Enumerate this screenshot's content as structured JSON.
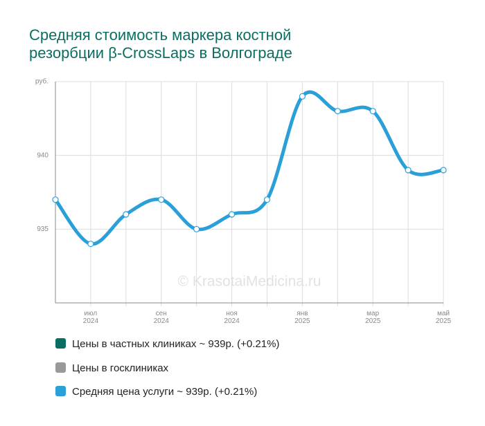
{
  "chart_data": {
    "type": "line",
    "title": "Средняя стоимость маркера костной резорбции β-CrossLaps в Волгограде",
    "categories": [
      null,
      "июл 2024",
      null,
      "сен 2024",
      null,
      "ноя 2024",
      null,
      "янв 2025",
      null,
      "мар 2025",
      null,
      "май 2025"
    ],
    "series": [
      {
        "name": "Цены в частных клиниках ~ 939р. (+0.21%)",
        "color": "#0a6e62",
        "values": [
          null,
          null,
          null,
          null,
          null,
          null,
          null,
          null,
          null,
          null,
          null,
          null
        ]
      },
      {
        "name": "Цены в госклиниках",
        "color": "#999999",
        "values": [
          null,
          null,
          null,
          null,
          null,
          null,
          null,
          null,
          null,
          null,
          null,
          null
        ]
      },
      {
        "name": "Средняя цена услуги ~ 939р. (+0.21%)",
        "color": "#2a9fd8",
        "values": [
          937,
          934,
          936,
          937,
          935,
          936,
          937,
          944,
          943,
          943,
          939,
          939
        ]
      }
    ],
    "ylim": [
      930,
      945
    ],
    "yticks": [
      935,
      940,
      {
        "value": 945,
        "label": "руб."
      }
    ],
    "grid": true,
    "watermark": "© KrasotaiMedicina.ru"
  }
}
